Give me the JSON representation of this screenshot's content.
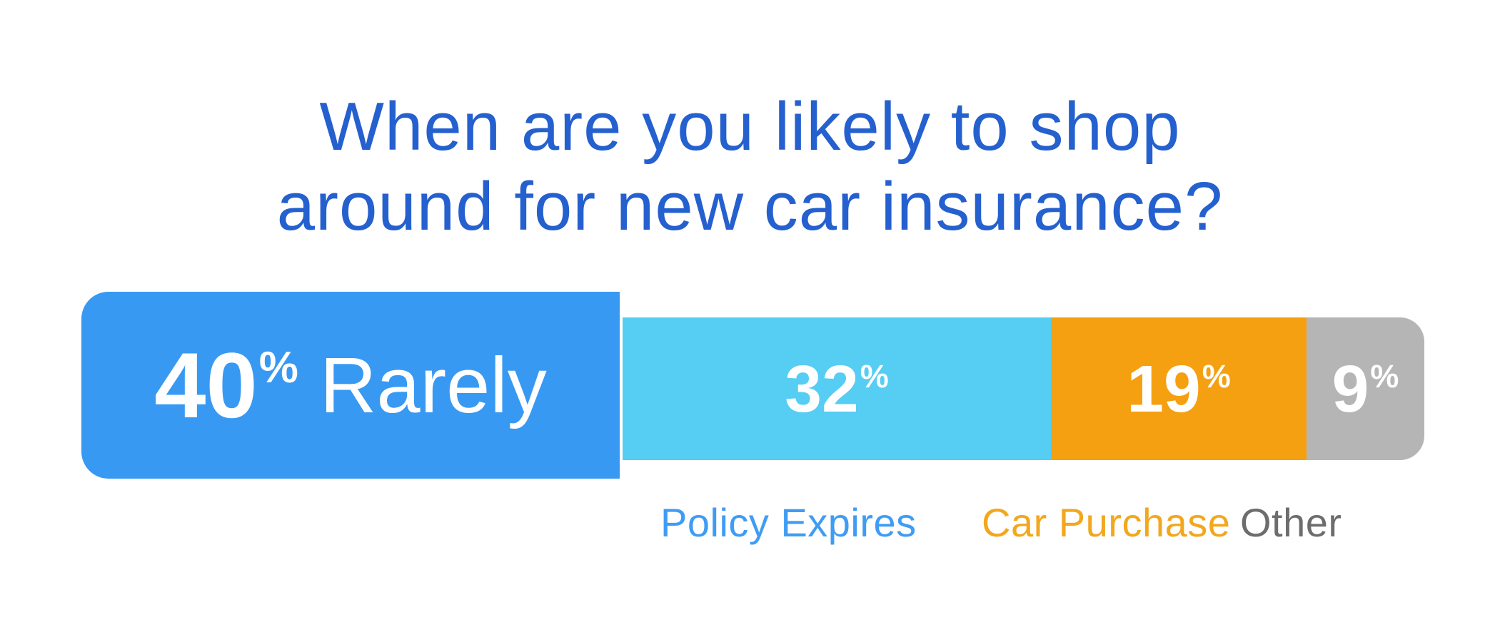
{
  "title": {
    "line1": "When are you likely to shop",
    "line2": "around for new car insurance?"
  },
  "chart_data": {
    "type": "bar",
    "subtype": "horizontal-stacked-percentage",
    "title": "When are you likely to shop around for new car insurance?",
    "categories": [
      "Rarely",
      "Policy Expires",
      "Car Purchase",
      "Other"
    ],
    "values": [
      40,
      32,
      19,
      9
    ],
    "unit": "%",
    "xlim": [
      0,
      100
    ],
    "value_labels": "inside-segments-white",
    "legend_position": "below-bar",
    "highlighted_segment": "Rarely",
    "segment_colors": [
      "#3899f3",
      "#56cdf3",
      "#f5a011",
      "#b5b5b5"
    ],
    "title_color": "#2560cf",
    "background_color": "#ffffff"
  },
  "segments": [
    {
      "id": "rarely",
      "value": "40",
      "unit": "%",
      "inline_label": "Rarely",
      "percent": 40,
      "color": "#3899f3"
    },
    {
      "id": "policy-expires",
      "value": "32",
      "unit": "%",
      "percent": 32,
      "color": "#56cdf3"
    },
    {
      "id": "car-purchase",
      "value": "19",
      "unit": "%",
      "percent": 19,
      "color": "#f5a011"
    },
    {
      "id": "other",
      "value": "9",
      "unit": "%",
      "percent": 9,
      "color": "#b5b5b5"
    }
  ],
  "legend": [
    {
      "id": "policy-expires",
      "label": "Policy Expires",
      "color": "#3f9cf5"
    },
    {
      "id": "car-purchase",
      "label": "Car Purchase",
      "color": "#f2a71d"
    },
    {
      "id": "other",
      "label": "Other",
      "color": "#6d6d6d"
    }
  ]
}
